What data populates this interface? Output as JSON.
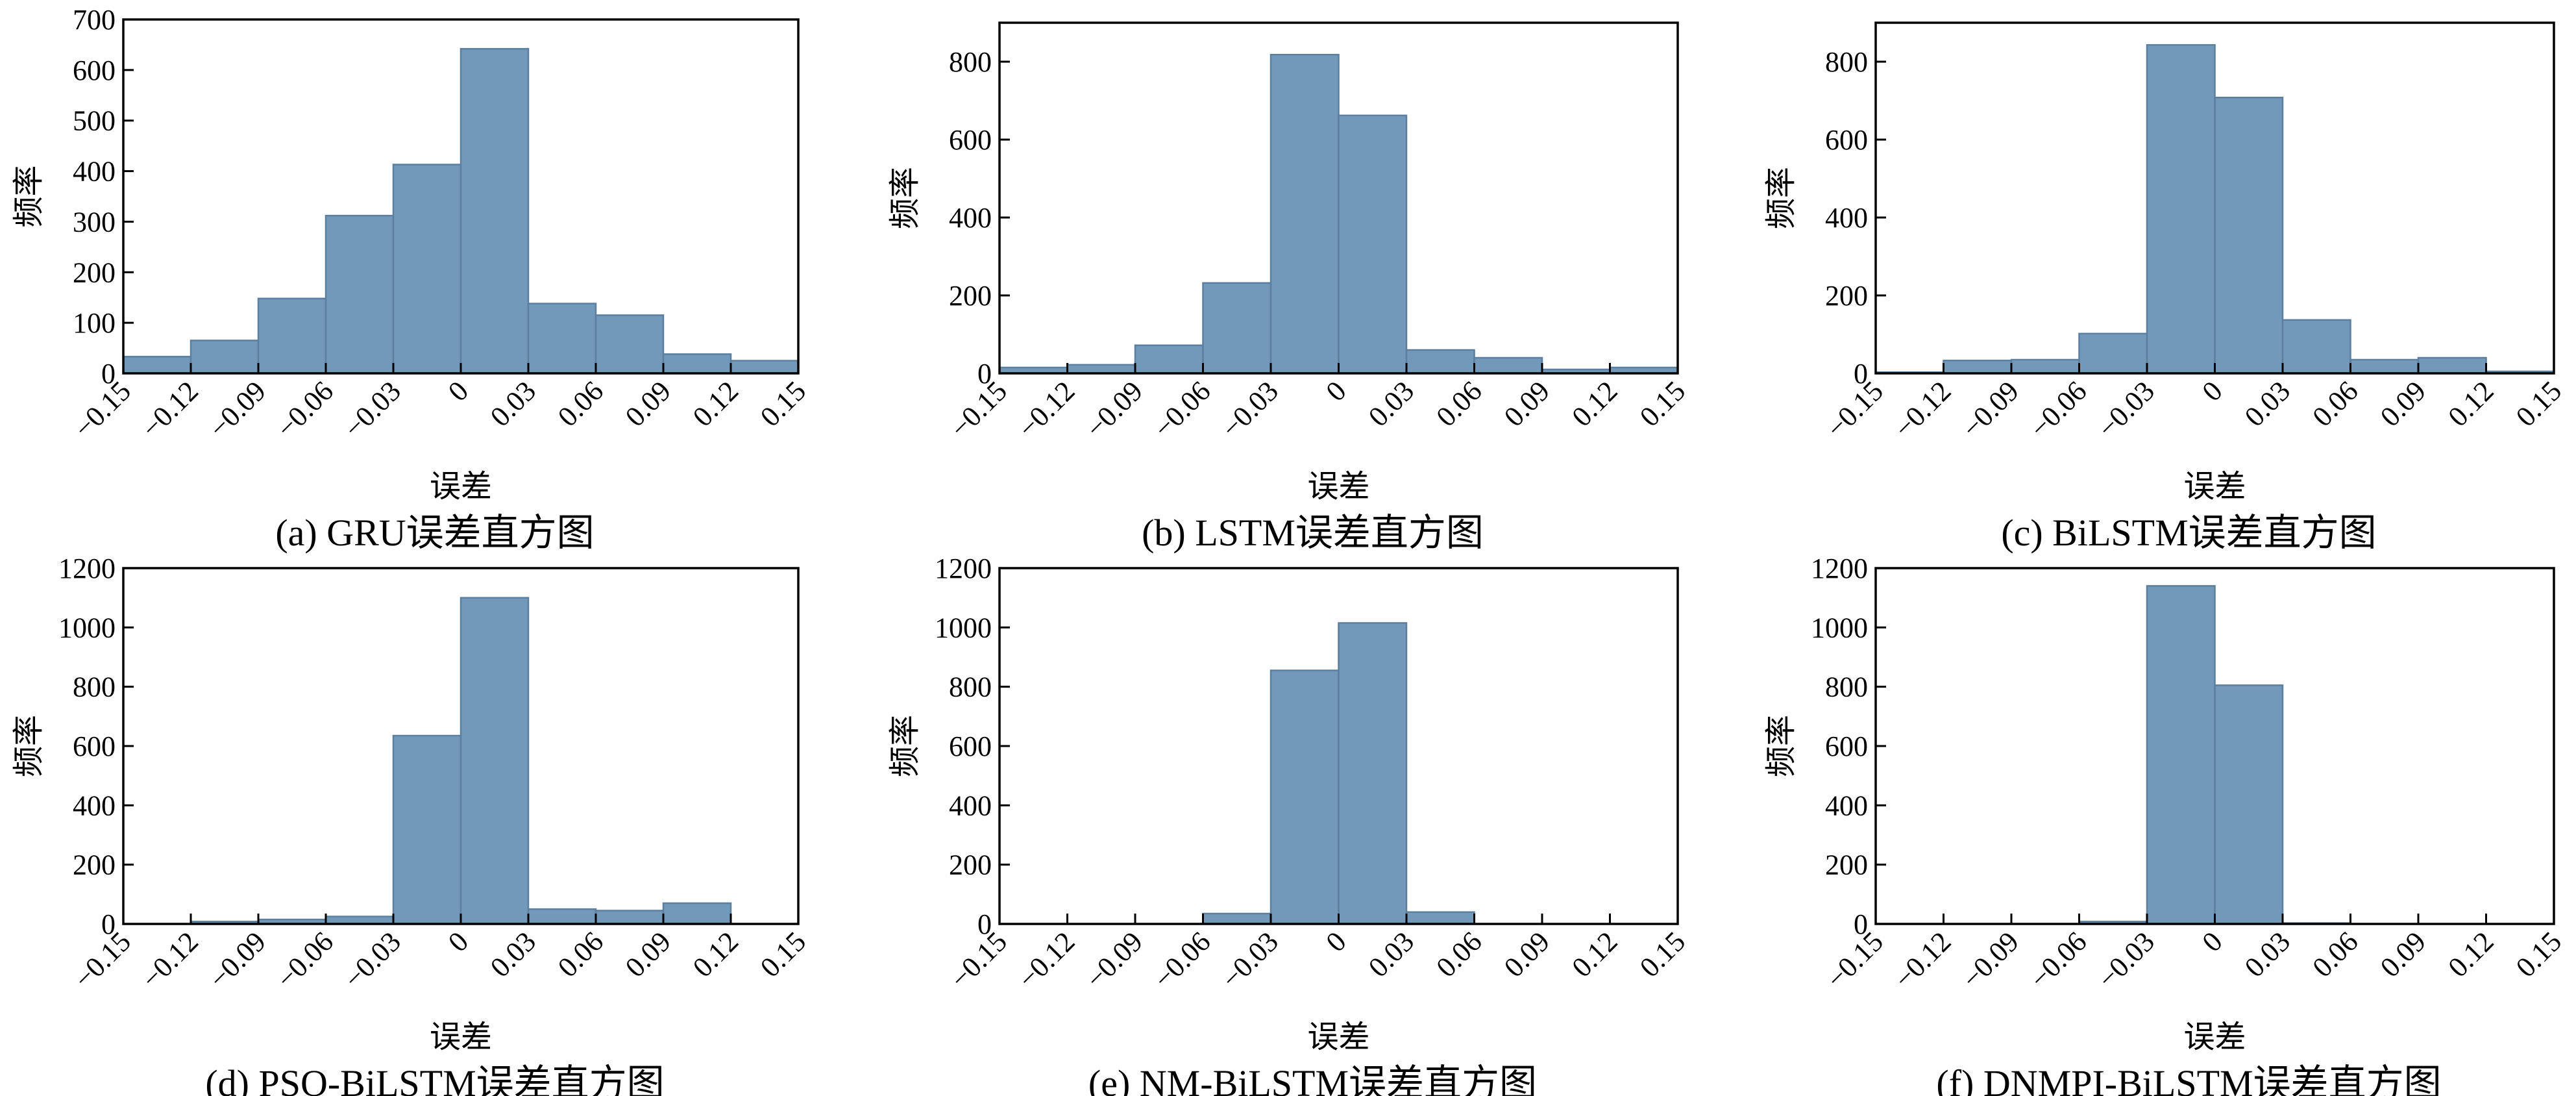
{
  "chart_data": [
    {
      "type": "bar",
      "caption": "(a) GRU误差直方图",
      "xlabel": "误差",
      "ylabel": "频率",
      "xlim": [
        -0.15,
        0.15
      ],
      "ylim": [
        0,
        700
      ],
      "xticks": [
        "−0.15",
        "−0.12",
        "−0.09",
        "−0.06",
        "−0.03",
        "0",
        "0.03",
        "0.06",
        "0.09",
        "0.12",
        "0.15"
      ],
      "yticks": [
        "0",
        "100",
        "200",
        "300",
        "400",
        "500",
        "600",
        "700"
      ],
      "bin_edges": [
        -0.15,
        -0.12,
        -0.09,
        -0.06,
        -0.03,
        0,
        0.03,
        0.06,
        0.09,
        0.12,
        0.15
      ],
      "values": [
        33,
        65,
        148,
        312,
        413,
        642,
        138,
        115,
        38,
        25
      ]
    },
    {
      "type": "bar",
      "caption": "(b) LSTM误差直方图",
      "xlabel": "误差",
      "ylabel": "频率",
      "xlim": [
        -0.15,
        0.15
      ],
      "ylim": [
        0,
        900
      ],
      "xticks": [
        "−0.15",
        "−0.12",
        "−0.09",
        "−0.06",
        "−0.03",
        "0",
        "0.03",
        "0.06",
        "0.09",
        "0.12",
        "0.15"
      ],
      "yticks": [
        "0",
        "200",
        "400",
        "600",
        "800"
      ],
      "bin_edges": [
        -0.15,
        -0.12,
        -0.09,
        -0.06,
        -0.03,
        0,
        0.03,
        0.06,
        0.09,
        0.12,
        0.15
      ],
      "values": [
        15,
        22,
        72,
        232,
        818,
        662,
        60,
        40,
        10,
        15
      ]
    },
    {
      "type": "bar",
      "caption": "(c) BiLSTM误差直方图",
      "xlabel": "误差",
      "ylabel": "频率",
      "xlim": [
        -0.15,
        0.15
      ],
      "ylim": [
        0,
        900
      ],
      "xticks": [
        "−0.15",
        "−0.12",
        "−0.09",
        "−0.06",
        "−0.03",
        "0",
        "0.03",
        "0.06",
        "0.09",
        "0.12",
        "0.15"
      ],
      "yticks": [
        "0",
        "200",
        "400",
        "600",
        "800"
      ],
      "bin_edges": [
        -0.15,
        -0.12,
        -0.09,
        -0.06,
        -0.03,
        0,
        0.03,
        0.06,
        0.09,
        0.12,
        0.15
      ],
      "values": [
        3,
        33,
        35,
        102,
        843,
        708,
        137,
        35,
        40,
        5
      ]
    },
    {
      "type": "bar",
      "caption": "(d) PSO-BiLSTM误差直方图",
      "xlabel": "误差",
      "ylabel": "频率",
      "xlim": [
        -0.15,
        0.15
      ],
      "ylim": [
        0,
        1200
      ],
      "xticks": [
        "−0.15",
        "−0.12",
        "−0.09",
        "−0.06",
        "−0.03",
        "0",
        "0.03",
        "0.06",
        "0.09",
        "0.12",
        "0.15"
      ],
      "yticks": [
        "0",
        "200",
        "400",
        "600",
        "800",
        "1000",
        "1200"
      ],
      "bin_edges": [
        -0.15,
        -0.12,
        -0.09,
        -0.06,
        -0.03,
        0,
        0.03,
        0.06,
        0.09,
        0.12,
        0.15
      ],
      "values": [
        0,
        8,
        15,
        25,
        635,
        1100,
        50,
        45,
        70,
        0
      ]
    },
    {
      "type": "bar",
      "caption": "(e) NM-BiLSTM误差直方图",
      "xlabel": "误差",
      "ylabel": "频率",
      "xlim": [
        -0.15,
        0.15
      ],
      "ylim": [
        0,
        1200
      ],
      "xticks": [
        "−0.15",
        "−0.12",
        "−0.09",
        "−0.06",
        "−0.03",
        "0",
        "0.03",
        "0.06",
        "0.09",
        "0.12",
        "0.15"
      ],
      "yticks": [
        "0",
        "200",
        "400",
        "600",
        "800",
        "1000",
        "1200"
      ],
      "bin_edges": [
        -0.15,
        -0.12,
        -0.09,
        -0.06,
        -0.03,
        0,
        0.03,
        0.06,
        0.09,
        0.12,
        0.15
      ],
      "values": [
        0,
        0,
        0,
        35,
        855,
        1015,
        40,
        0,
        0,
        0
      ]
    },
    {
      "type": "bar",
      "caption": "(f) DNMPI-BiLSTM误差直方图",
      "xlabel": "误差",
      "ylabel": "频率",
      "xlim": [
        -0.15,
        0.15
      ],
      "ylim": [
        0,
        1200
      ],
      "xticks": [
        "−0.15",
        "−0.12",
        "−0.09",
        "−0.06",
        "−0.03",
        "0",
        "0.03",
        "0.06",
        "0.09",
        "0.12",
        "0.15"
      ],
      "yticks": [
        "0",
        "200",
        "400",
        "600",
        "800",
        "1000",
        "1200"
      ],
      "bin_edges": [
        -0.15,
        -0.12,
        -0.09,
        -0.06,
        -0.03,
        0,
        0.03,
        0.06,
        0.09,
        0.12,
        0.15
      ],
      "values": [
        0,
        0,
        0,
        8,
        1140,
        805,
        3,
        0,
        0,
        0
      ]
    }
  ]
}
